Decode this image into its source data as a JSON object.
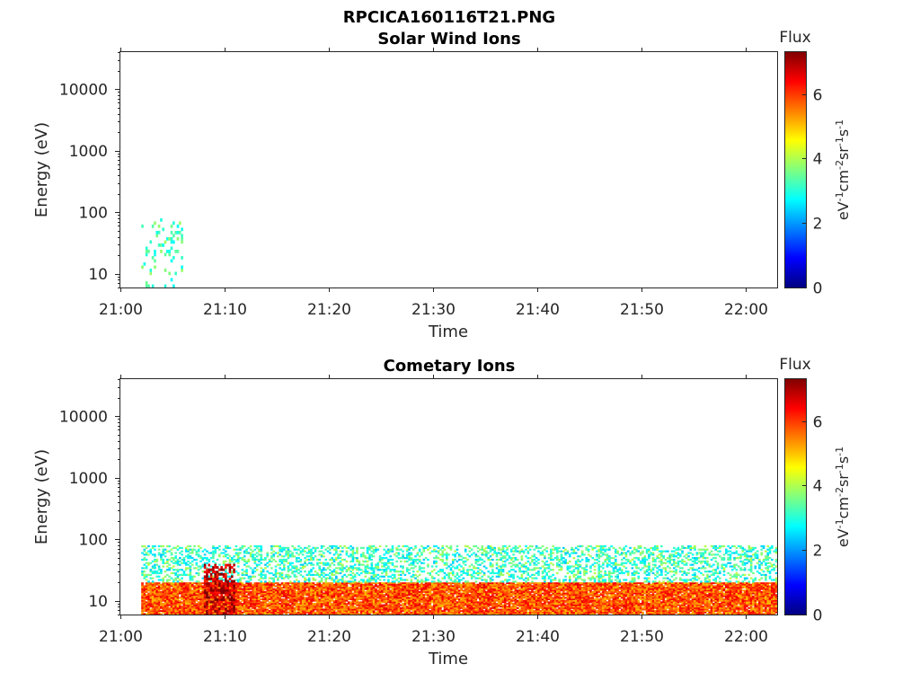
{
  "figure_title": "RPCICA160116T21.PNG",
  "chart_data": [
    {
      "type": "heatmap",
      "title": "Solar Wind Ions",
      "xlabel": "Time",
      "ylabel": "Energy (eV)",
      "y_scale": "log",
      "ylim": [
        6,
        40000
      ],
      "x_range": [
        "21:00",
        "22:03"
      ],
      "x_ticks": [
        "21:00",
        "21:10",
        "21:20",
        "21:30",
        "21:40",
        "21:50",
        "22:00"
      ],
      "y_ticks": [
        "10",
        "100",
        "1000",
        "10000"
      ],
      "colorbar": {
        "title": "Flux",
        "label": "eV-1cm-2sr-1s-1",
        "range": [
          0,
          7.3
        ],
        "ticks": [
          "0",
          "2",
          "4",
          "6"
        ],
        "colormap": "jet"
      },
      "grid": false,
      "features": [
        {
          "time_start": "21:02",
          "time_end": "21:06",
          "energy_min": 6,
          "energy_max": 80,
          "flux_level": 3.3,
          "description_level": "sparse"
        }
      ]
    },
    {
      "type": "heatmap",
      "title": "Cometary Ions",
      "xlabel": "Time",
      "ylabel": "Energy (eV)",
      "y_scale": "log",
      "ylim": [
        6,
        40000
      ],
      "x_range": [
        "21:00",
        "22:03"
      ],
      "x_ticks": [
        "21:00",
        "21:10",
        "21:20",
        "21:30",
        "21:40",
        "21:50",
        "22:00"
      ],
      "y_ticks": [
        "10",
        "100",
        "1000",
        "10000"
      ],
      "colorbar": {
        "title": "Flux",
        "label": "eV-1cm-2sr-1s-1",
        "range": [
          0,
          7.3
        ],
        "ticks": [
          "0",
          "2",
          "4",
          "6"
        ],
        "colormap": "jet"
      },
      "grid": false,
      "features": [
        {
          "time_start": "21:02",
          "time_end": "22:03",
          "energy_min": 6,
          "energy_max": 20,
          "flux_level": 5.8,
          "description_level": "dense"
        },
        {
          "time_start": "21:02",
          "time_end": "22:03",
          "energy_min": 20,
          "energy_max": 80,
          "flux_level": 3.2,
          "description_level": "intermittent"
        },
        {
          "time_start": "21:08",
          "time_end": "21:11",
          "energy_min": 6,
          "energy_max": 40,
          "flux_level": 6.8,
          "description_level": "peak"
        }
      ]
    }
  ],
  "colors": {
    "axis": "#262626",
    "background": "#ffffff"
  }
}
